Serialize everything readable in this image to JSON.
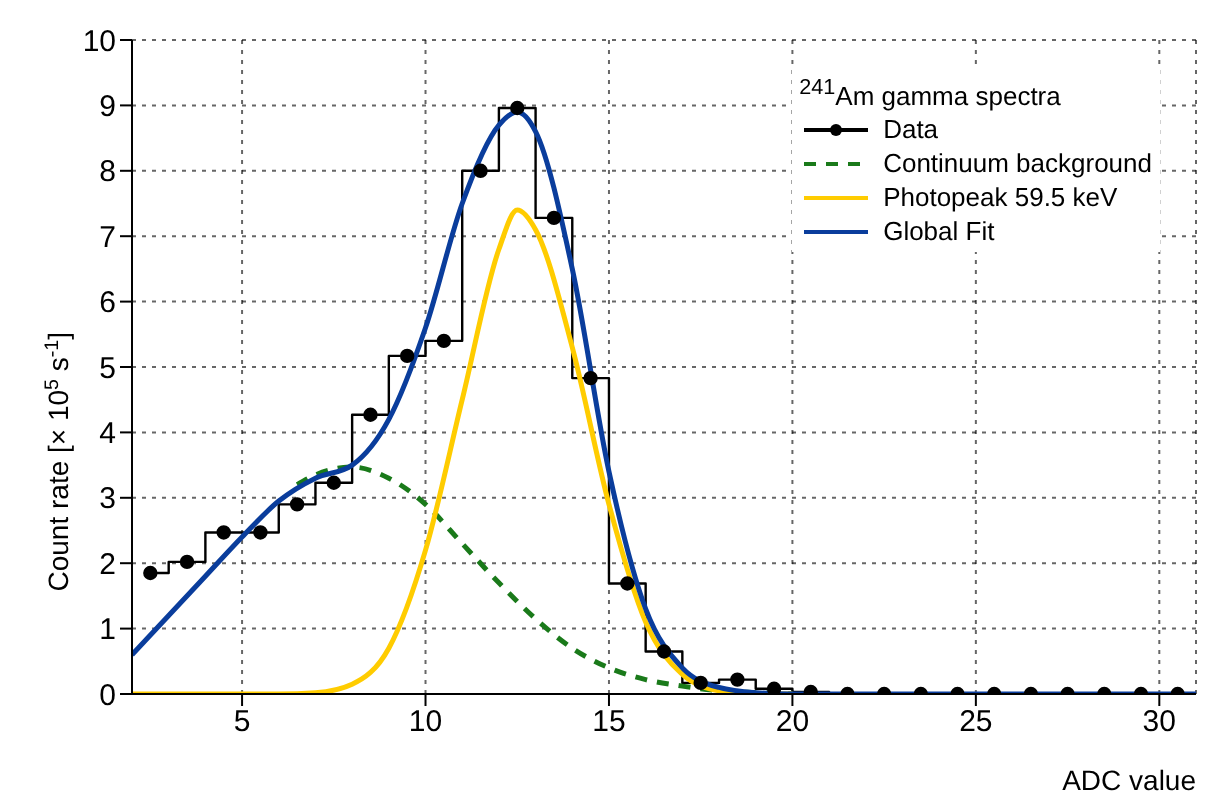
{
  "chart_data": {
    "type": "line",
    "legend_title": "$^{241}$Am gamma spectra",
    "xlabel": "ADC value",
    "ylabel": "Count rate [× 10$^{5}$ s$^{-1}$]",
    "xlim": [
      2,
      31
    ],
    "xticks": [
      5,
      10,
      15,
      20,
      25,
      30
    ],
    "ylim": [
      0,
      10
    ],
    "yticks": [
      0,
      1,
      2,
      3,
      4,
      5,
      6,
      7,
      8,
      9,
      10
    ],
    "grid": true,
    "legend": "top right",
    "series": [
      {
        "name": "Data",
        "type": "step",
        "color": "#000000",
        "marker": "circle",
        "line_style": "solid",
        "x": [
          2.5,
          3.5,
          4.5,
          5.5,
          6.5,
          7.5,
          8.5,
          9.5,
          10.5,
          11.5,
          12.5,
          13.5,
          14.5,
          15.5,
          16.5,
          17.5,
          18.5,
          19.5,
          20.5,
          21.5,
          22.5,
          23.5,
          24.5,
          25.5,
          26.5,
          27.5,
          28.5,
          29.5,
          30.5
        ],
        "values": [
          1.85,
          2.02,
          2.47,
          2.47,
          2.9,
          3.23,
          4.27,
          5.17,
          5.4,
          8.0,
          8.96,
          7.28,
          4.83,
          1.69,
          0.65,
          0.17,
          0.22,
          0.08,
          0.03,
          0,
          0,
          0,
          0,
          0,
          0,
          0,
          0,
          0,
          0
        ]
      },
      {
        "name": "Continuum background",
        "color": "#1a7a1a",
        "marker": "none",
        "line_style": "dashed",
        "x": [
          6.5,
          7,
          8,
          9,
          10,
          11,
          12,
          13,
          14,
          15,
          16,
          17,
          18,
          19,
          20
        ],
        "values": [
          3.2,
          3.35,
          3.47,
          3.3,
          2.9,
          2.3,
          1.7,
          1.15,
          0.7,
          0.4,
          0.22,
          0.12,
          0.05,
          0.02,
          0
        ]
      },
      {
        "name": "Photopeak 59.5 keV",
        "color": "#ffcc00",
        "marker": "none",
        "line_style": "solid",
        "x": [
          2,
          6,
          7,
          8,
          9,
          10,
          11,
          12,
          12.5,
          13,
          14,
          15,
          16,
          17,
          18,
          19,
          20
        ],
        "values": [
          0,
          0,
          0.02,
          0.15,
          0.7,
          2.2,
          4.5,
          6.8,
          7.4,
          7.1,
          5.3,
          2.9,
          1.1,
          0.3,
          0.05,
          0,
          0
        ]
      },
      {
        "name": "Global Fit",
        "color": "#0a3d9c",
        "marker": "none",
        "line_style": "solid",
        "x": [
          2,
          3,
          4,
          5,
          6,
          7,
          8,
          9,
          10,
          11,
          12,
          12.5,
          13,
          14,
          15,
          16,
          17,
          18,
          19,
          20,
          31
        ],
        "values": [
          0.6,
          1.2,
          1.8,
          2.4,
          2.95,
          3.3,
          3.5,
          4.2,
          5.6,
          7.5,
          8.7,
          8.9,
          8.6,
          6.5,
          3.4,
          1.3,
          0.4,
          0.1,
          0.02,
          0,
          0
        ]
      }
    ]
  }
}
